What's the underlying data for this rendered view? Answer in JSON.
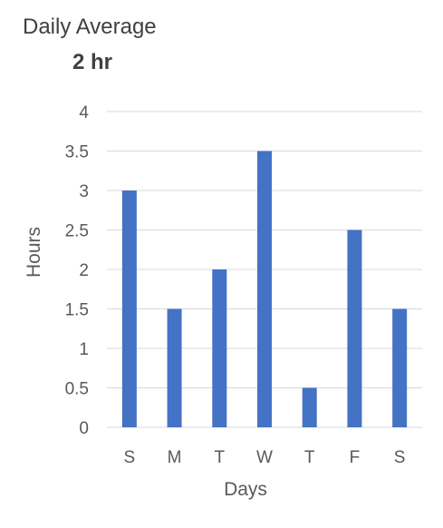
{
  "header": {
    "title": "Daily Average",
    "value": "2 hr"
  },
  "chart_data": {
    "type": "bar",
    "categories": [
      "S",
      "M",
      "T",
      "W",
      "T",
      "F",
      "S"
    ],
    "values": [
      3,
      1.5,
      2,
      3.5,
      0.5,
      2.5,
      1.5
    ],
    "xlabel": "Days",
    "ylabel": "Hours",
    "ylim": [
      0,
      4
    ],
    "yticks": [
      0,
      0.5,
      1,
      1.5,
      2,
      2.5,
      3,
      3.5,
      4
    ],
    "grid": true,
    "bar_color": "#4472C4",
    "grid_color": "#D9D9D9"
  }
}
